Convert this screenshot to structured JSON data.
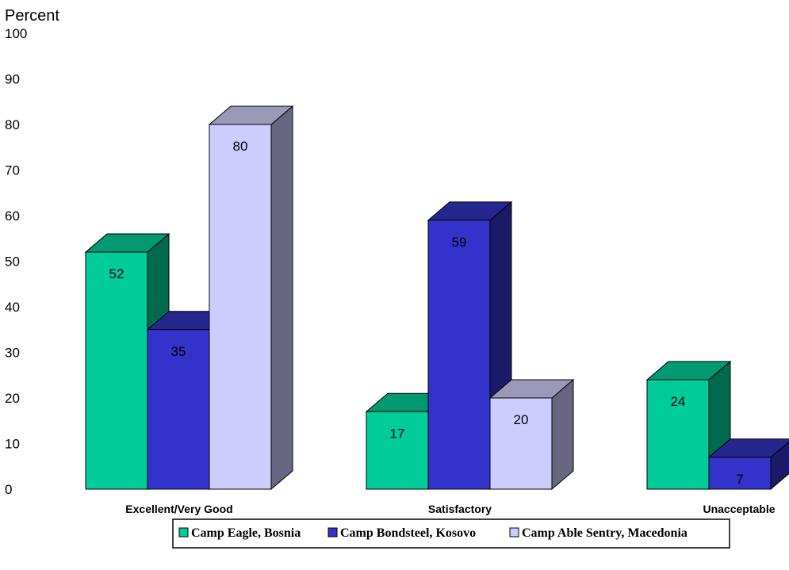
{
  "chart_data": {
    "type": "bar",
    "title": "",
    "ylabel": "Percent",
    "xlabel": "",
    "ylim": [
      0,
      100
    ],
    "yticks": [
      0,
      10,
      20,
      30,
      40,
      50,
      60,
      70,
      80,
      90,
      100
    ],
    "categories": [
      "Excellent/Very Good",
      "Satisfactory",
      "Unacceptable"
    ],
    "series": [
      {
        "name": "Camp Eagle, Bosnia",
        "values": [
          52,
          17,
          24
        ],
        "color": "#00cc99"
      },
      {
        "name": "Camp Bondsteel, Kosovo",
        "values": [
          35,
          59,
          7
        ],
        "color": "#3333cc"
      },
      {
        "name": "Camp Able Sentry, Macedonia",
        "values": [
          80,
          20,
          null
        ],
        "color": "#ccccff"
      }
    ],
    "legend_position": "bottom",
    "grid": false,
    "style": "3d-bar"
  }
}
